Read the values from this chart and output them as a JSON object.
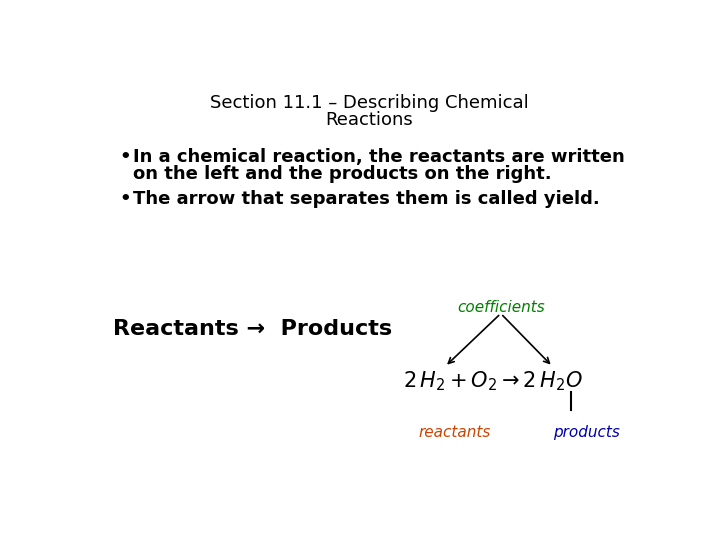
{
  "title_line1": "Section 11.1 – Describing Chemical",
  "title_line2": "Reactions",
  "bullet1_line1": "In a chemical reaction, the reactants are written",
  "bullet1_line2": "on the left and the products on the right.",
  "bullet2": "The arrow that separates them is called yield.",
  "reactants_products": "Reactants →  Products",
  "coefficients_label": "coefficients",
  "reactants_label": "reactants",
  "products_label": "products",
  "background_color": "#ffffff",
  "title_color": "#000000",
  "bullet_color": "#000000",
  "coeff_color": "#008000",
  "reactants_color": "#cc4400",
  "products_color": "#0000aa",
  "title_fontsize": 13,
  "bullet_fontsize": 13,
  "reactants_prod_fontsize": 16,
  "label_fontsize": 11,
  "equation_fontsize": 15
}
